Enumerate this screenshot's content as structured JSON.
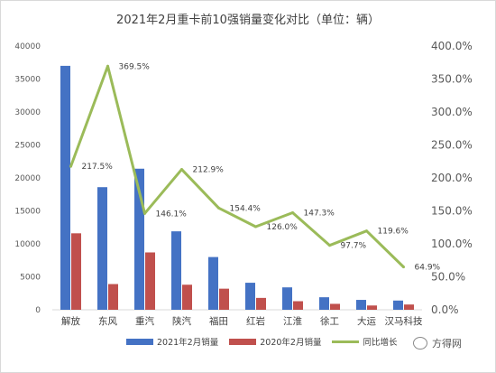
{
  "chart_data": {
    "type": "bar",
    "title": "2021年2月重卡前10强销量变化对比（单位：辆）",
    "categories": [
      "解放",
      "东风",
      "重汽",
      "陕汽",
      "福田",
      "红岩",
      "江淮",
      "徐工",
      "大运",
      "汉马科技"
    ],
    "series": [
      {
        "name": "2021年2月销量",
        "type": "bar",
        "axis": "left",
        "color": "#4472C4",
        "values": [
          37000,
          18600,
          21400,
          11900,
          8000,
          4100,
          3400,
          1900,
          1500,
          1400
        ]
      },
      {
        "name": "2020年2月销量",
        "type": "bar",
        "axis": "left",
        "color": "#C0504D",
        "values": [
          11600,
          3900,
          8700,
          3800,
          3200,
          1800,
          1300,
          900,
          650,
          800
        ]
      },
      {
        "name": "同比增长",
        "type": "line",
        "axis": "right",
        "color": "#9BBB59",
        "values": [
          217.5,
          369.5,
          146.1,
          212.9,
          154.4,
          126.0,
          147.3,
          97.7,
          119.6,
          64.9
        ],
        "data_labels": [
          "217.5%",
          "369.5%",
          "146.1%",
          "212.9%",
          "154.4%",
          "126.0%",
          "147.3%",
          "97.7%",
          "119.6%",
          "64.9%"
        ]
      }
    ],
    "y_left": {
      "min": 0,
      "max": 40000,
      "ticks": [
        "0",
        "5000",
        "10000",
        "15000",
        "20000",
        "25000",
        "30000",
        "35000",
        "40000"
      ]
    },
    "y_right": {
      "min": 0,
      "max": 400,
      "ticks": [
        "0.0%",
        "50.0%",
        "100.0%",
        "150.0%",
        "200.0%",
        "250.0%",
        "300.0%",
        "350.0%",
        "400.0%"
      ]
    },
    "grid": false,
    "legend_position": "bottom"
  },
  "watermark": {
    "text": "方得网",
    "icon": "wechat-icon"
  }
}
